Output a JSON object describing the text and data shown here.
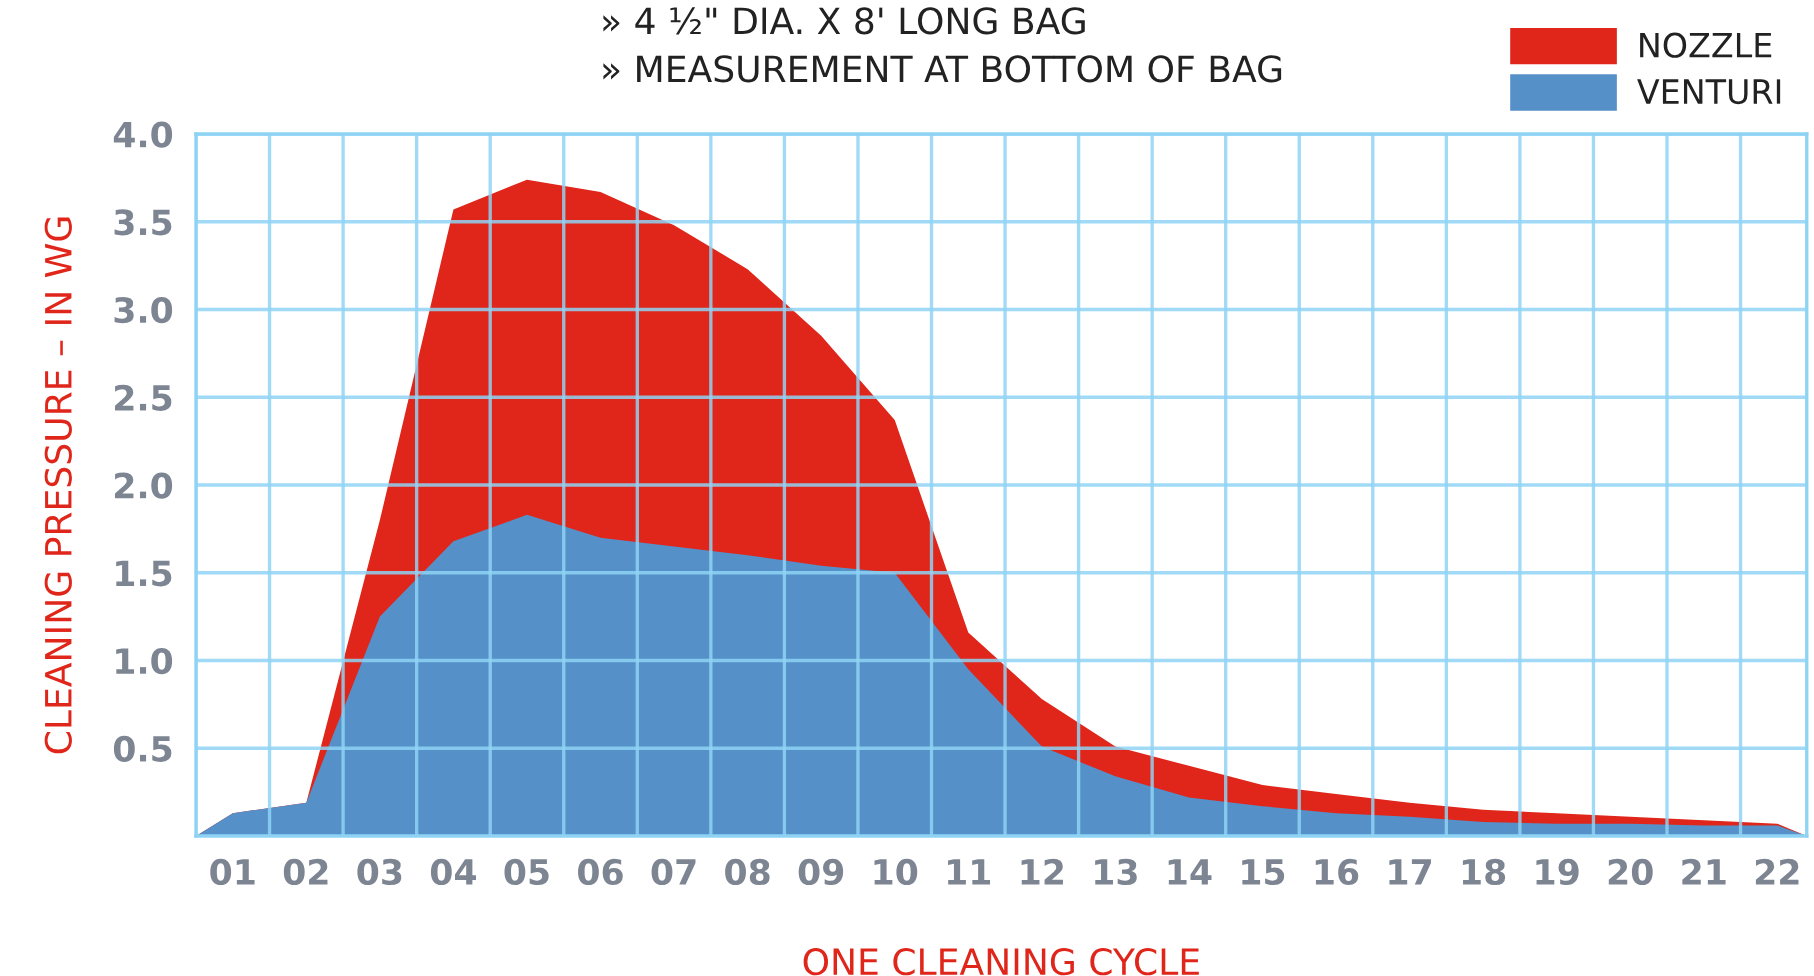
{
  "chart_data": {
    "type": "area",
    "annotations": [
      "» 4 ½\" DIA. X 8' LONG BAG",
      "» MEASUREMENT AT BOTTOM OF BAG"
    ],
    "xlabel": "ONE CLEANING CYCLE",
    "ylabel": "CLEANING PRESSURE – IN WG",
    "x": [
      0.5,
      1,
      2,
      3,
      4,
      5,
      6,
      7,
      8,
      9,
      10,
      11,
      12,
      13,
      14,
      15,
      16,
      17,
      18,
      19,
      20,
      21,
      22,
      22.4
    ],
    "series": [
      {
        "name": "NOZZLE",
        "color": "#e0261a",
        "values": [
          0,
          0.13,
          0.19,
          1.8,
          3.57,
          3.74,
          3.67,
          3.48,
          3.23,
          2.85,
          2.37,
          1.16,
          0.78,
          0.51,
          0.4,
          0.29,
          0.24,
          0.19,
          0.15,
          0.13,
          0.11,
          0.09,
          0.07,
          0
        ]
      },
      {
        "name": "VENTURI",
        "color": "#5590c8",
        "values": [
          0,
          0.13,
          0.19,
          1.25,
          1.68,
          1.83,
          1.7,
          1.65,
          1.6,
          1.54,
          1.5,
          0.95,
          0.51,
          0.34,
          0.22,
          0.17,
          0.13,
          0.11,
          0.08,
          0.07,
          0.07,
          0.06,
          0.06,
          0
        ]
      }
    ],
    "xlim": [
      0.5,
      22.4
    ],
    "xticks": [
      {
        "value": 1,
        "label": "01"
      },
      {
        "value": 2,
        "label": "02"
      },
      {
        "value": 3,
        "label": "03"
      },
      {
        "value": 4,
        "label": "04"
      },
      {
        "value": 5,
        "label": "05"
      },
      {
        "value": 6,
        "label": "06"
      },
      {
        "value": 7,
        "label": "07"
      },
      {
        "value": 8,
        "label": "08"
      },
      {
        "value": 9,
        "label": "09"
      },
      {
        "value": 10,
        "label": "10"
      },
      {
        "value": 11,
        "label": "11"
      },
      {
        "value": 12,
        "label": "12"
      },
      {
        "value": 13,
        "label": "13"
      },
      {
        "value": 14,
        "label": "14"
      },
      {
        "value": 15,
        "label": "15"
      },
      {
        "value": 16,
        "label": "16"
      },
      {
        "value": 17,
        "label": "17"
      },
      {
        "value": 18,
        "label": "18"
      },
      {
        "value": 19,
        "label": "19"
      },
      {
        "value": 20,
        "label": "20"
      },
      {
        "value": 21,
        "label": "21"
      },
      {
        "value": 22,
        "label": "22"
      }
    ],
    "ylim": [
      0,
      4
    ],
    "yticks": [
      {
        "value": 0.5,
        "label": "0.5"
      },
      {
        "value": 1,
        "label": "1.0"
      },
      {
        "value": 1.5,
        "label": "1.5"
      },
      {
        "value": 2,
        "label": "2.0"
      },
      {
        "value": 2.5,
        "label": "2.5"
      },
      {
        "value": 3,
        "label": "3.0"
      },
      {
        "value": 3.5,
        "label": "3.5"
      },
      {
        "value": 4,
        "label": "4.0"
      }
    ],
    "grid": true,
    "legend": "top right"
  }
}
